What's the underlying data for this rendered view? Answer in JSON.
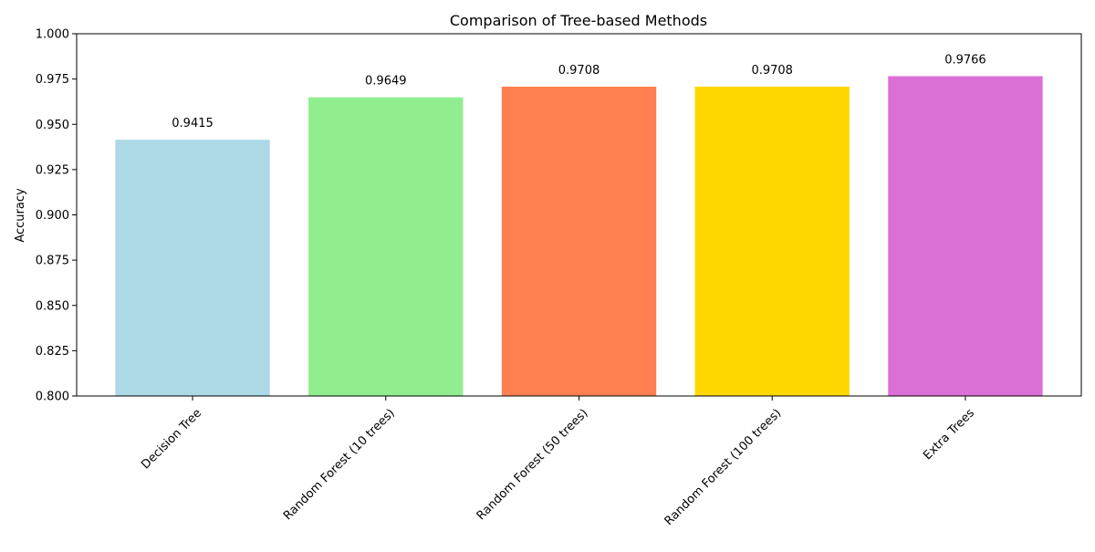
{
  "chart_data": {
    "type": "bar",
    "title": "Comparison of Tree-based Methods",
    "xlabel": "",
    "ylabel": "Accuracy",
    "ylim": [
      0.8,
      1.0
    ],
    "yticks": [
      "0.800",
      "0.825",
      "0.850",
      "0.875",
      "0.900",
      "0.925",
      "0.950",
      "0.975",
      "1.000"
    ],
    "categories": [
      "Decision Tree",
      "Random Forest (10 trees)",
      "Random Forest (50 trees)",
      "Random Forest (100 trees)",
      "Extra Trees"
    ],
    "values": [
      0.9415,
      0.9649,
      0.9708,
      0.9708,
      0.9766
    ],
    "value_labels": [
      "0.9415",
      "0.9649",
      "0.9708",
      "0.9708",
      "0.9766"
    ],
    "colors": [
      "#add8e6",
      "#90ee90",
      "#ff7f50",
      "#ffd700",
      "#da70d6"
    ],
    "grid": false,
    "legend": "none"
  }
}
